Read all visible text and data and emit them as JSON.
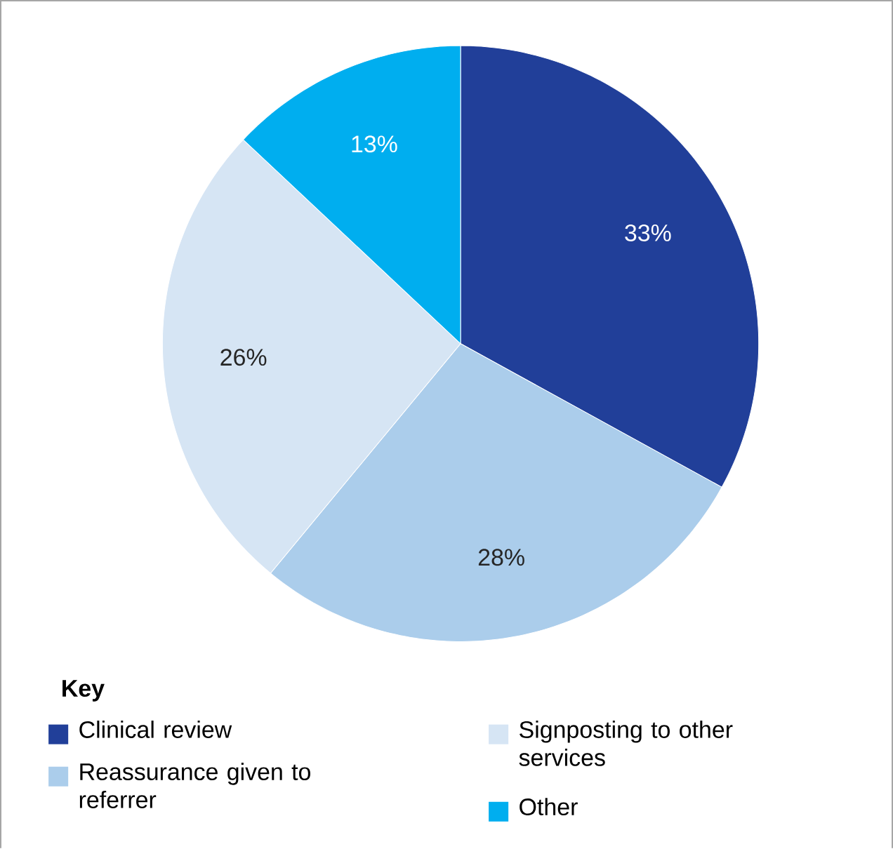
{
  "chart_data": {
    "type": "pie",
    "categories": [
      "Clinical review",
      "Reassurance given to referrer",
      "Signposting to other services",
      "Other"
    ],
    "values": [
      33,
      28,
      26,
      13
    ],
    "value_labels": [
      "33%",
      "28%",
      "26%",
      "13%"
    ],
    "colors": [
      "#213f99",
      "#abcdeb",
      "#d6e5f4",
      "#00aeef"
    ],
    "legend_title": "**Key**",
    "legend": "bottom"
  }
}
